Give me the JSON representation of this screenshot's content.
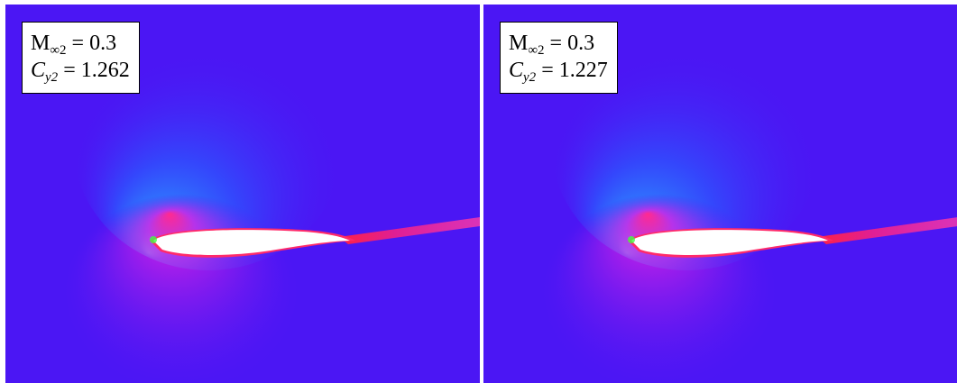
{
  "panels": [
    {
      "mach": {
        "symbol": "M",
        "subscript": "∞2",
        "text": "= 0.3"
      },
      "lift": {
        "symbol": "C",
        "subscript": "y2",
        "text": "= 1.262"
      }
    },
    {
      "mach": {
        "symbol": "M",
        "subscript": "∞2",
        "text": "= 0.3"
      },
      "lift": {
        "symbol": "C",
        "subscript": "y2",
        "text": "= 1.227"
      }
    }
  ]
}
